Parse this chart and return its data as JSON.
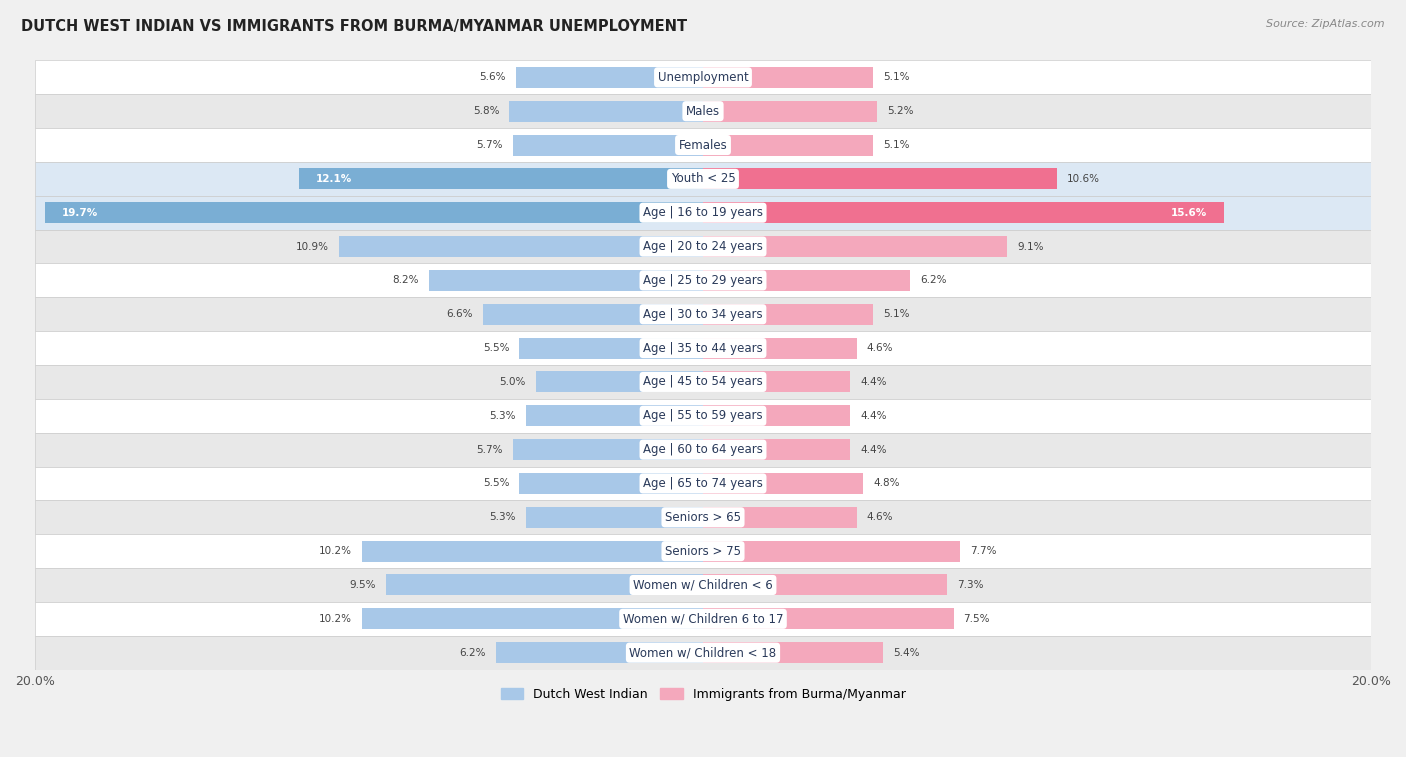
{
  "title": "DUTCH WEST INDIAN VS IMMIGRANTS FROM BURMA/MYANMAR UNEMPLOYMENT",
  "source": "Source: ZipAtlas.com",
  "categories": [
    "Unemployment",
    "Males",
    "Females",
    "Youth < 25",
    "Age | 16 to 19 years",
    "Age | 20 to 24 years",
    "Age | 25 to 29 years",
    "Age | 30 to 34 years",
    "Age | 35 to 44 years",
    "Age | 45 to 54 years",
    "Age | 55 to 59 years",
    "Age | 60 to 64 years",
    "Age | 65 to 74 years",
    "Seniors > 65",
    "Seniors > 75",
    "Women w/ Children < 6",
    "Women w/ Children 6 to 17",
    "Women w/ Children < 18"
  ],
  "left_values": [
    5.6,
    5.8,
    5.7,
    12.1,
    19.7,
    10.9,
    8.2,
    6.6,
    5.5,
    5.0,
    5.3,
    5.7,
    5.5,
    5.3,
    10.2,
    9.5,
    10.2,
    6.2
  ],
  "right_values": [
    5.1,
    5.2,
    5.1,
    10.6,
    15.6,
    9.1,
    6.2,
    5.1,
    4.6,
    4.4,
    4.4,
    4.4,
    4.8,
    4.6,
    7.7,
    7.3,
    7.5,
    5.4
  ],
  "left_color_normal": "#a8c8e8",
  "left_color_highlight": "#7aaed4",
  "right_color_normal": "#f4a8bc",
  "right_color_highlight": "#f07090",
  "bg_color": "#f0f0f0",
  "row_bg_white": "#ffffff",
  "row_bg_gray": "#e8e8e8",
  "row_bg_highlight": "#dce8f4",
  "max_value": 20.0,
  "legend_left": "Dutch West Indian",
  "legend_right": "Immigrants from Burma/Myanmar",
  "highlight_rows": [
    3,
    4
  ]
}
